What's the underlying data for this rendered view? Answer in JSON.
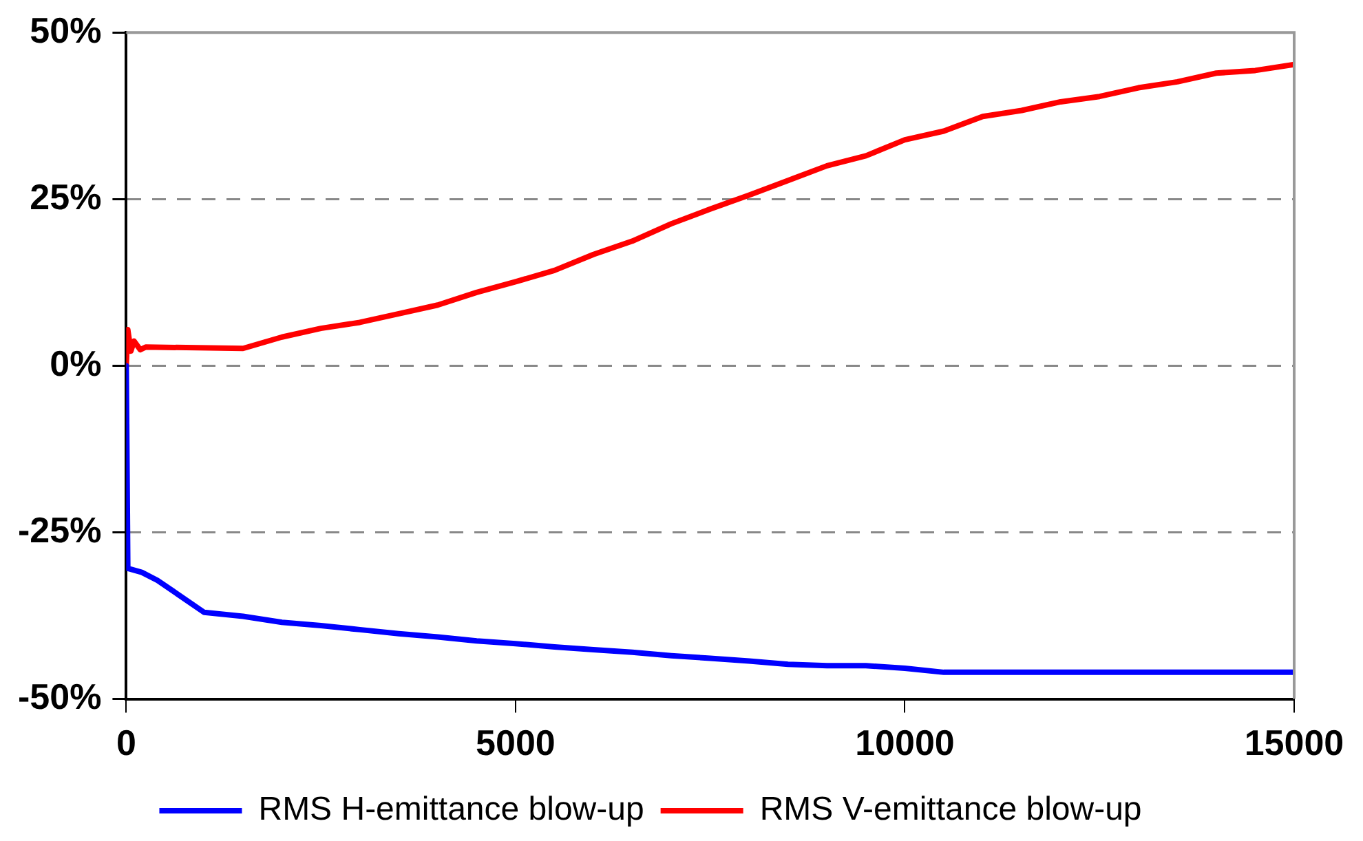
{
  "chart_data": {
    "type": "line",
    "xlim": [
      0,
      15000
    ],
    "xticks": [
      0,
      5000,
      10000,
      15000
    ],
    "ylim": [
      -50,
      50
    ],
    "yticks": [
      {
        "value": -50,
        "label": "-50%"
      },
      {
        "value": -25,
        "label": "-25%"
      },
      {
        "value": 0,
        "label": "0%"
      },
      {
        "value": 25,
        "label": "25%"
      },
      {
        "value": 50,
        "label": "50%"
      }
    ],
    "grid": "y",
    "legend": "bottom",
    "line_style": "solid",
    "marker": "none",
    "series": [
      {
        "name": "RMS H-emittance blow-up",
        "color": "#0000ff",
        "x": [
          0,
          20,
          200,
          400,
          1000,
          1500,
          2000,
          2500,
          3000,
          3500,
          4000,
          4500,
          5000,
          5500,
          6000,
          6500,
          7000,
          7500,
          8000,
          8500,
          9000,
          9500,
          10000,
          10500,
          11000,
          12000,
          13000,
          14000,
          15000
        ],
        "values": [
          0,
          -30.4,
          -31,
          -32.2,
          -37,
          -37.6,
          -38.5,
          -39,
          -39.6,
          -40.2,
          -40.7,
          -41.3,
          -41.7,
          -42.2,
          -42.6,
          -43,
          -43.5,
          -43.9,
          -44.3,
          -44.8,
          -45,
          -45,
          -45.4,
          -46,
          -46,
          -46,
          -46,
          -46,
          -46
        ]
      },
      {
        "name": "RMS V-emittance blow-up",
        "color": "#ff0000",
        "x": [
          0,
          20,
          60,
          100,
          180,
          250,
          1500,
          2000,
          2500,
          3000,
          3500,
          4000,
          4500,
          5000,
          5500,
          6000,
          6500,
          7000,
          7500,
          8000,
          8500,
          9000,
          9500,
          10000,
          10500,
          11000,
          11500,
          12000,
          12500,
          13000,
          13500,
          14000,
          14500,
          15000
        ],
        "values": [
          0,
          5.4,
          2.2,
          3.7,
          2.4,
          2.8,
          2.6,
          4.3,
          5.6,
          6.5,
          7.8,
          9.1,
          11,
          12.6,
          14.3,
          16.7,
          18.7,
          21.3,
          23.5,
          25.6,
          27.8,
          30,
          31.5,
          33.9,
          35.2,
          37.4,
          38.3,
          39.6,
          40.4,
          41.7,
          42.6,
          43.9,
          44.3,
          45.2
        ]
      }
    ]
  }
}
